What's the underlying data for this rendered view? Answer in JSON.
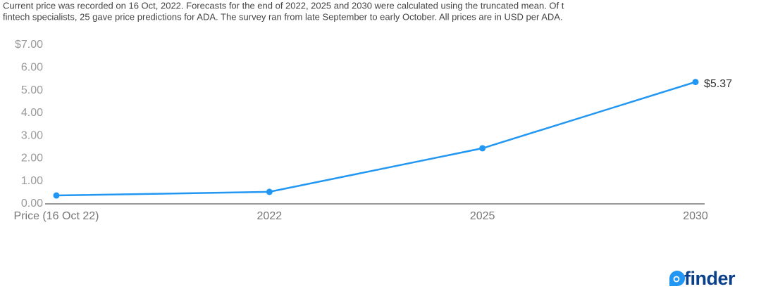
{
  "chart_data": {
    "type": "line",
    "subtitle": [
      "Current price was recorded on 16 Oct, 2022. Forecasts for the end of 2022, 2025 and 2030 were calculated using the truncated mean. Of t",
      "fintech specialists, 25 gave price predictions for ADA. The survey ran from late September to early October. All prices are in USD per ADA."
    ],
    "categories": [
      "Price (16 Oct 22)",
      "2022",
      "2025",
      "2030"
    ],
    "values": [
      0.37,
      0.53,
      2.45,
      5.37
    ],
    "value_labels": [
      null,
      null,
      null,
      "$5.37"
    ],
    "color": "#2196f3",
    "ylim": [
      0,
      7
    ],
    "yticks": [
      {
        "value": 0,
        "label": "0.00"
      },
      {
        "value": 1,
        "label": "1.00"
      },
      {
        "value": 2,
        "label": "2.00"
      },
      {
        "value": 3,
        "label": "3.00"
      },
      {
        "value": 4,
        "label": "4.00"
      },
      {
        "value": 5,
        "label": "5.00"
      },
      {
        "value": 6,
        "label": "6.00"
      },
      {
        "value": 7,
        "label": "$7.00"
      }
    ],
    "grid": false
  },
  "logo": "finder"
}
